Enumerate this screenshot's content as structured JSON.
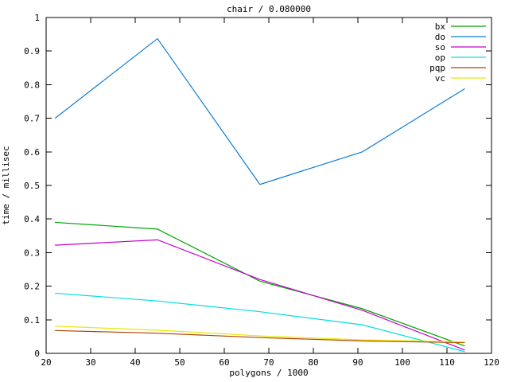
{
  "window": {
    "background": "#ffffff"
  },
  "chart_data": {
    "type": "line",
    "title": "chair / 0.080000",
    "xlabel": "polygons / 1000",
    "ylabel": "time / millisec",
    "xlim": [
      20,
      120
    ],
    "ylim": [
      0,
      1
    ],
    "xticks": [
      20,
      30,
      40,
      50,
      60,
      70,
      80,
      90,
      100,
      110,
      120
    ],
    "yticks": [
      0,
      0.1,
      0.2,
      0.3,
      0.4,
      0.5,
      0.6,
      0.7,
      0.8,
      0.9,
      1
    ],
    "ytick_labels": [
      "0",
      "0.1",
      "0.2",
      "0.3",
      "0.4",
      "0.5",
      "0.6",
      "0.7",
      "0.8",
      "0.9",
      "1"
    ],
    "grid": false,
    "legend_position": "top-right-inside",
    "axis_color": "#000000",
    "text_color": "#000000",
    "x": [
      22,
      45,
      68,
      91,
      114
    ],
    "series": [
      {
        "name": "bx",
        "color": "#00a400",
        "values": [
          0.39,
          0.37,
          0.215,
          0.133,
          0.022
        ]
      },
      {
        "name": "do",
        "color": "#0e7ed6",
        "values": [
          0.7,
          0.937,
          0.503,
          0.6,
          0.788
        ]
      },
      {
        "name": "so",
        "color": "#c400cc",
        "values": [
          0.322,
          0.338,
          0.22,
          0.128,
          0.01
        ]
      },
      {
        "name": "op",
        "color": "#00dfe0",
        "values": [
          0.179,
          0.156,
          0.124,
          0.085,
          0.005
        ]
      },
      {
        "name": "pqp",
        "color": "#b04300",
        "values": [
          0.068,
          0.06,
          0.047,
          0.037,
          0.032
        ]
      },
      {
        "name": "vc",
        "color": "#e8e800",
        "values": [
          0.081,
          0.069,
          0.052,
          0.04,
          0.034
        ]
      }
    ]
  }
}
